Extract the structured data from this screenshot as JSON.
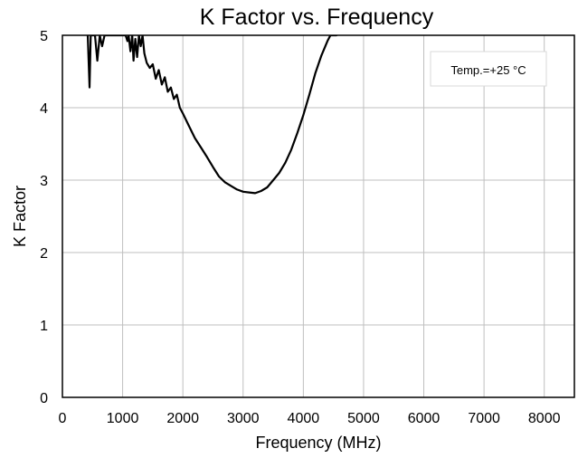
{
  "chart_data": {
    "type": "line",
    "title": "K Factor vs. Frequency",
    "xlabel": "Frequency (MHz)",
    "ylabel": "K Factor",
    "xlim": [
      0,
      8500
    ],
    "ylim": [
      0,
      5
    ],
    "xticks": [
      0,
      1000,
      2000,
      3000,
      4000,
      5000,
      6000,
      7000,
      8000
    ],
    "yticks": [
      0,
      1,
      2,
      3,
      4,
      5
    ],
    "grid": true,
    "annotation": "Temp.=+25 °C",
    "annotation_position": "top-right",
    "series": [
      {
        "x": [
          420,
          450,
          470,
          500,
          540,
          580,
          620,
          660,
          700,
          750,
          800,
          850,
          900,
          950,
          1000,
          1050,
          1080,
          1100,
          1130,
          1160,
          1180,
          1210,
          1240,
          1270,
          1300,
          1330,
          1360,
          1400,
          1450,
          1500,
          1550,
          1600,
          1650,
          1700,
          1750,
          1800,
          1850,
          1900,
          1950,
          2000,
          2100,
          2200,
          2300,
          2400,
          2500,
          2600,
          2700,
          2800,
          2900,
          3000,
          3100,
          3200,
          3300,
          3400,
          3500,
          3600,
          3700,
          3800,
          3900,
          4000,
          4100,
          4200,
          4300,
          4400,
          4450,
          4500,
          4550
        ],
        "y": [
          5.0,
          4.28,
          5.0,
          5.0,
          5.0,
          4.65,
          5.0,
          4.85,
          5.0,
          5.0,
          5.0,
          5.0,
          5.0,
          5.0,
          5.0,
          5.0,
          4.92,
          5.0,
          4.78,
          5.0,
          4.65,
          4.95,
          4.7,
          5.0,
          4.85,
          5.0,
          4.75,
          4.62,
          4.55,
          4.6,
          4.4,
          4.52,
          4.32,
          4.42,
          4.22,
          4.28,
          4.12,
          4.18,
          4.0,
          3.92,
          3.75,
          3.58,
          3.45,
          3.32,
          3.18,
          3.05,
          2.97,
          2.92,
          2.87,
          2.84,
          2.83,
          2.82,
          2.85,
          2.9,
          3.0,
          3.1,
          3.24,
          3.42,
          3.65,
          3.9,
          4.18,
          4.48,
          4.72,
          4.92,
          5.0,
          5.0,
          5.0
        ]
      }
    ]
  }
}
